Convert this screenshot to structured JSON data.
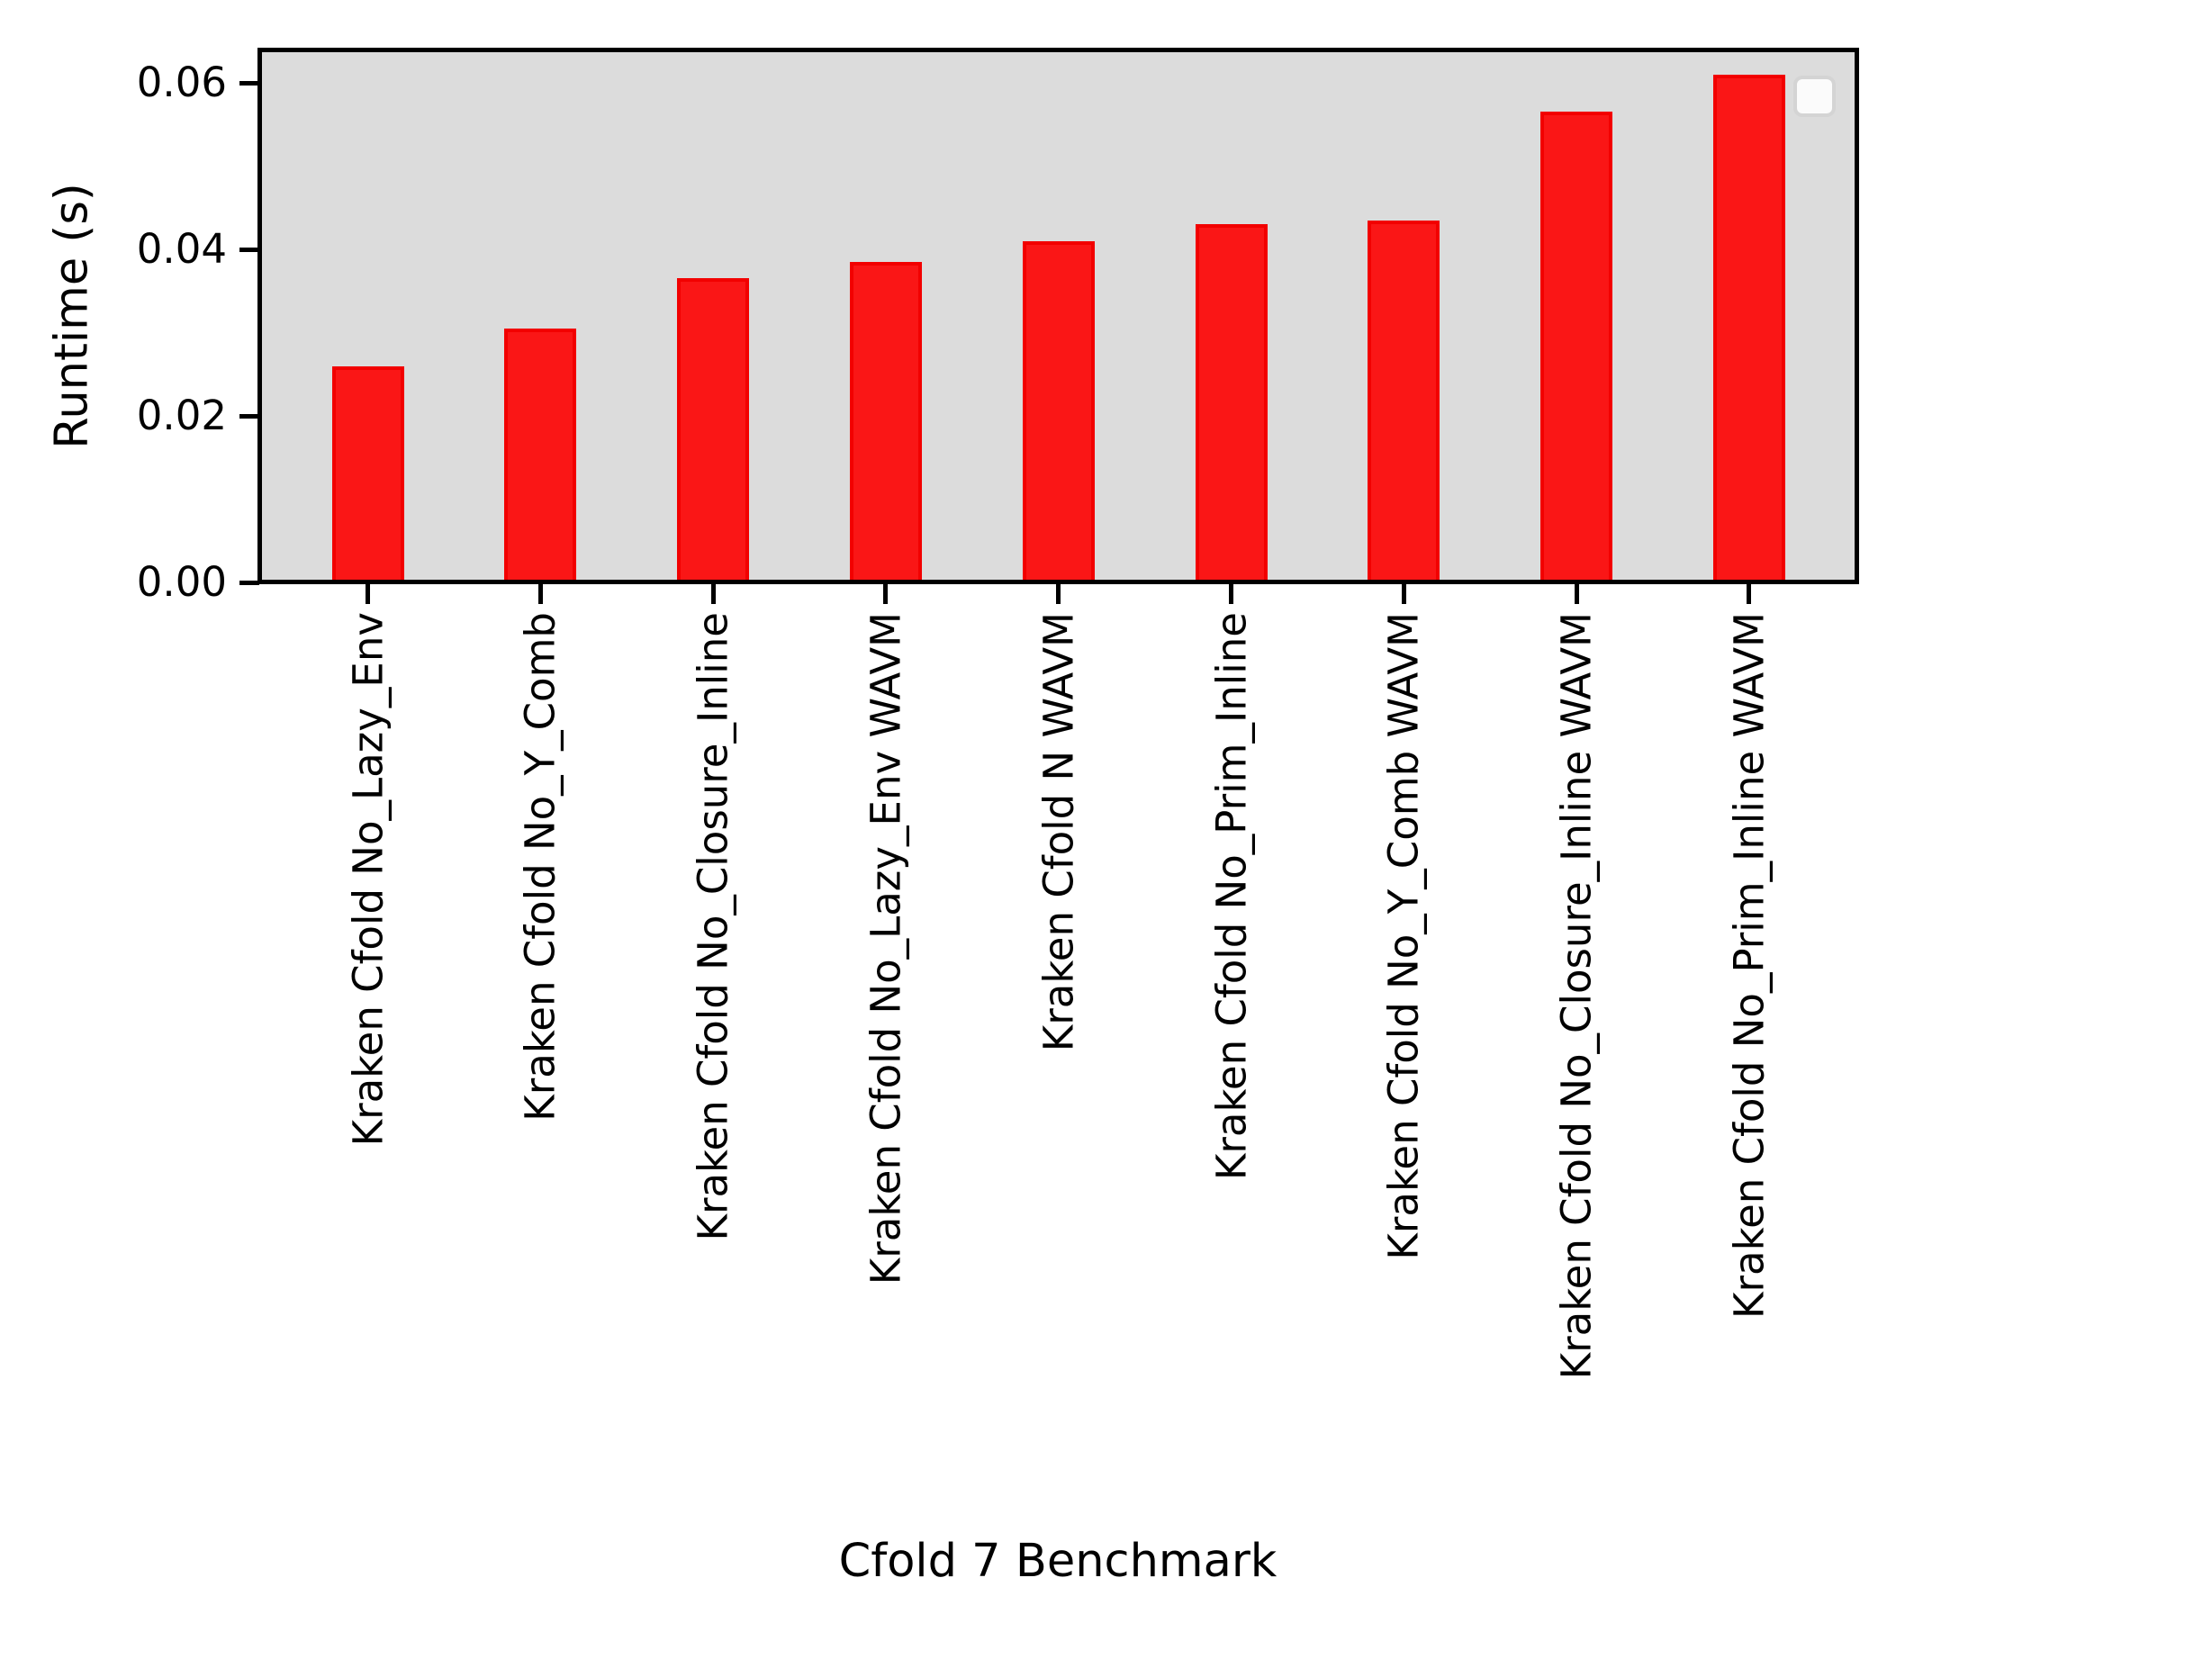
{
  "figure": {
    "background_color": "#ffffff",
    "plot_background_color": "#dcdcdc",
    "bar_fill_color": "#fa1616",
    "bar_edge_color": "#f20000",
    "spine_color": "#000000",
    "legend_visible": true,
    "legend_entries": []
  },
  "chart_data": {
    "type": "bar",
    "title": "",
    "xlabel": "Cfold 7 Benchmark",
    "ylabel": "Runtime (s)",
    "categories": [
      "Kraken Cfold No_Lazy_Env",
      "Kraken Cfold No_Y_Comb",
      "Kraken Cfold No_Closure_Inline",
      "Kraken Cfold No_Lazy_Env WAVM",
      "Kraken Cfold N WAVM",
      "Kraken Cfold No_Prim_Inline",
      "Kraken Cfold No_Y_Comb WAVM",
      "Kraken Cfold No_Closure_Inline WAVM",
      "Kraken Cfold No_Prim_Inline WAVM"
    ],
    "values": [
      0.026,
      0.0305,
      0.0365,
      0.0385,
      0.041,
      0.043,
      0.0435,
      0.0565,
      0.061
    ],
    "series_color": "red",
    "ylim": [
      0.0,
      0.064
    ],
    "yticks": [
      0.0,
      0.02,
      0.04,
      0.06
    ],
    "ytick_labels": [
      "0.00",
      "0.02",
      "0.04",
      "0.06"
    ],
    "grid": false,
    "legend_position": "upper right",
    "bar_orientation": "vertical",
    "xtick_label_rotation_deg": 90
  }
}
